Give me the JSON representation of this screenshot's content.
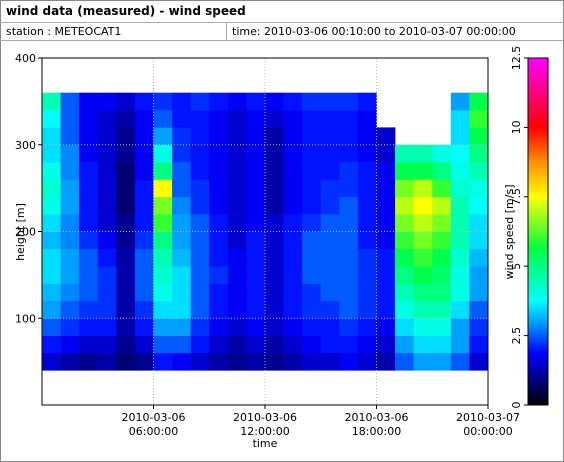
{
  "chart_data": {
    "type": "heatmap",
    "title": "wind data (measured) - wind speed",
    "station": "station : METEOCAT1",
    "time_range": "time: 2010-03-06 00:10:00 to 2010-03-07 00:00:00",
    "x_label": "time",
    "y_label": "height [m]",
    "x": [
      "2010-03-06 00:00:00",
      "2010-03-06 01:00:00",
      "2010-03-06 02:00:00",
      "2010-03-06 03:00:00",
      "2010-03-06 04:00:00",
      "2010-03-06 05:00:00",
      "2010-03-06 06:00:00",
      "2010-03-06 07:00:00",
      "2010-03-06 08:00:00",
      "2010-03-06 09:00:00",
      "2010-03-06 10:00:00",
      "2010-03-06 11:00:00",
      "2010-03-06 12:00:00",
      "2010-03-06 13:00:00",
      "2010-03-06 14:00:00",
      "2010-03-06 15:00:00",
      "2010-03-06 16:00:00",
      "2010-03-06 17:00:00",
      "2010-03-06 18:00:00",
      "2010-03-06 19:00:00",
      "2010-03-06 20:00:00",
      "2010-03-06 21:00:00",
      "2010-03-06 22:00:00",
      "2010-03-06 23:00:00"
    ],
    "xlim": [
      "2010-03-06 00:00:00",
      "2010-03-07 00:00:00"
    ],
    "xticks": [
      "2010-03-06 06:00:00",
      "2010-03-06 12:00:00",
      "2010-03-06 18:00:00",
      "2010-03-07 00:00:00"
    ],
    "y": [
      40,
      60,
      80,
      100,
      120,
      140,
      160,
      180,
      200,
      220,
      240,
      260,
      280,
      300,
      320,
      340
    ],
    "ylim": [
      0,
      400
    ],
    "yticks": [
      100,
      200,
      300,
      400
    ],
    "z": [
      [
        1.5,
        1.2,
        1.0,
        1.2,
        0.8,
        1.0,
        2.0,
        1.8,
        1.5,
        1.2,
        1.0,
        1.2,
        1.0,
        1.2,
        1.5,
        1.5,
        1.8,
        1.5,
        1.2,
        2.5,
        3,
        3,
        2.5,
        1.5
      ],
      [
        2,
        1.8,
        1.5,
        1.5,
        1,
        1.5,
        2.5,
        2.5,
        2,
        1.5,
        1.2,
        1.5,
        1.2,
        1.5,
        1.8,
        2,
        2,
        1.8,
        1.5,
        3,
        3.5,
        3.5,
        3,
        2
      ],
      [
        2.5,
        2.2,
        2,
        2,
        1.2,
        2,
        3,
        3,
        2.2,
        1.8,
        1.5,
        1.8,
        1.5,
        1.8,
        2,
        2,
        2.2,
        2,
        1.8,
        3.5,
        4,
        4,
        3,
        2.2
      ],
      [
        3,
        2.5,
        2.2,
        2.2,
        1.2,
        2.2,
        3.5,
        3.5,
        2.5,
        2,
        1.8,
        2,
        1.5,
        2,
        2.2,
        2.2,
        2.5,
        2.2,
        2,
        4,
        4.5,
        4.5,
        3.5,
        2.5
      ],
      [
        3.2,
        2.8,
        2.5,
        2.2,
        1.2,
        2.5,
        4,
        3.5,
        2.5,
        2,
        1.8,
        2,
        1.5,
        2,
        2.2,
        2.5,
        2.5,
        2.2,
        2,
        4.5,
        5,
        5,
        4,
        3
      ],
      [
        3.5,
        3,
        2.5,
        2.2,
        1.2,
        2.5,
        4.2,
        3.5,
        2.5,
        2.2,
        1.8,
        2,
        1.5,
        2,
        2.5,
        2.5,
        2.5,
        2.2,
        2,
        5,
        5.5,
        5.2,
        4,
        3
      ],
      [
        3.5,
        3,
        2.5,
        2,
        1.2,
        2.5,
        4.5,
        3.2,
        2.5,
        2,
        1.8,
        2,
        1.5,
        2,
        2.5,
        2.5,
        2.5,
        2.2,
        2,
        5.5,
        6,
        5.5,
        4.2,
        3.2
      ],
      [
        3.2,
        2.8,
        2.2,
        1.8,
        1.0,
        2.2,
        5,
        3,
        2.5,
        2,
        1.5,
        2,
        1.5,
        2,
        2.5,
        2.5,
        2.5,
        2,
        1.8,
        6,
        6.5,
        6,
        4.5,
        3.5
      ],
      [
        3.5,
        2.8,
        2,
        1.5,
        1.0,
        2,
        6,
        3,
        2.5,
        2,
        1.5,
        1.8,
        1.5,
        2,
        2.2,
        2.5,
        2.5,
        2,
        1.8,
        6.5,
        7,
        6.5,
        4.5,
        3.5
      ],
      [
        4,
        3,
        2,
        1.5,
        0.8,
        2,
        6.5,
        2.8,
        2.2,
        1.8,
        1.5,
        1.8,
        1.2,
        1.8,
        2,
        2.2,
        2.5,
        2,
        1.8,
        7,
        7.5,
        7,
        4.5,
        3.8
      ],
      [
        4.2,
        3,
        2,
        1.5,
        0.8,
        2,
        7.5,
        2.5,
        2.2,
        1.8,
        1.5,
        1.8,
        1.2,
        1.8,
        2,
        2.2,
        2.2,
        2,
        1.8,
        6.5,
        7,
        6,
        4.2,
        4
      ],
      [
        4,
        2.8,
        2,
        1.5,
        0.8,
        1.8,
        5,
        2.5,
        2,
        1.8,
        1.5,
        1.8,
        1.2,
        1.8,
        2,
        2,
        2.2,
        2,
        1.8,
        5.5,
        5.5,
        5,
        4,
        4.5
      ],
      [
        3.5,
        2.8,
        1.8,
        1.5,
        1.0,
        1.8,
        4,
        2.2,
        2,
        1.8,
        1.5,
        1.8,
        1.2,
        1.8,
        2,
        2,
        2,
        1.8,
        1.5,
        4.5,
        4.5,
        4,
        3.8,
        5
      ],
      [
        3.5,
        2.5,
        1.8,
        1.5,
        1.0,
        1.8,
        3,
        2.2,
        2,
        1.8,
        1.5,
        1.8,
        1.2,
        1.8,
        2,
        2,
        2,
        1.8,
        1.5,
        null,
        null,
        null,
        3.5,
        5.5
      ],
      [
        3.8,
        2.5,
        1.8,
        1.5,
        1.2,
        1.8,
        2.5,
        2,
        2,
        1.8,
        1.5,
        1.8,
        1.5,
        1.8,
        2,
        2,
        2,
        1.8,
        null,
        null,
        null,
        null,
        3.5,
        6
      ],
      [
        4.5,
        2.5,
        1.8,
        1.8,
        1.5,
        2,
        2.2,
        2,
        2.2,
        2,
        1.8,
        2,
        1.8,
        2,
        2.2,
        2.2,
        2.2,
        2,
        null,
        null,
        null,
        null,
        3,
        5.5
      ]
    ],
    "grid": true,
    "colorbar": {
      "label": "wind speed [m/s]",
      "lim": [
        0,
        12.5
      ],
      "ticks": [
        0,
        2.5,
        5,
        7.5,
        10,
        12.5
      ]
    }
  }
}
